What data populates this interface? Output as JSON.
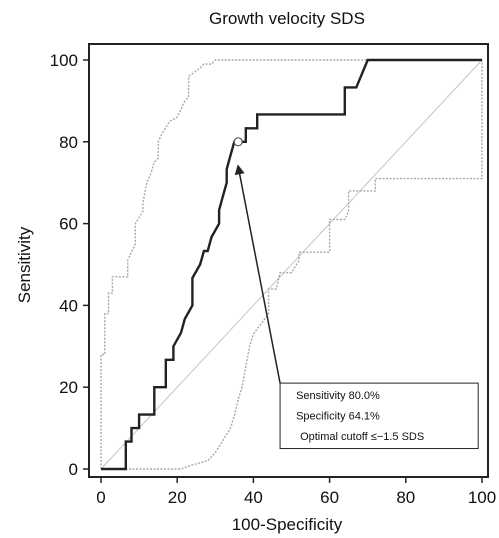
{
  "chart_data": {
    "type": "line",
    "title": "Growth velocity SDS",
    "xlabel": "100-Specificity",
    "ylabel": "Sensitivity",
    "xlim": [
      0,
      100
    ],
    "ylim": [
      0,
      100
    ],
    "x_ticks": [
      "0",
      "20",
      "40",
      "60",
      "80",
      "100"
    ],
    "y_ticks": [
      "0",
      "20",
      "40",
      "60",
      "80",
      "100"
    ],
    "grid": false,
    "series": [
      {
        "role": "roc-curve",
        "color": "#222222",
        "x": [
          0,
          6.5,
          6.5,
          8,
          8,
          10,
          10,
          14,
          14,
          17,
          17,
          19,
          19,
          21,
          22,
          24,
          24,
          26,
          27,
          28,
          29,
          31,
          31,
          32,
          33,
          33,
          34,
          35,
          36,
          36,
          38,
          38,
          40,
          41,
          41,
          44,
          44,
          64,
          64,
          67,
          67,
          70,
          70,
          100
        ],
        "y": [
          0,
          0,
          6.7,
          6.7,
          10,
          10,
          13.3,
          13.3,
          20,
          20,
          26.7,
          26.7,
          30,
          33.3,
          36.7,
          40,
          46.7,
          50,
          53.3,
          53.3,
          56.7,
          60,
          63.3,
          66.7,
          70,
          73.3,
          76.7,
          80,
          80,
          80,
          80,
          83.3,
          83.3,
          83.3,
          86.7,
          86.7,
          86.7,
          86.7,
          93.3,
          93.3,
          93.3,
          100,
          100,
          100
        ]
      },
      {
        "role": "upper-confidence-bound",
        "color": "#a8a8a8",
        "x": [
          0,
          0,
          1,
          1,
          2,
          2,
          3,
          3,
          5,
          7,
          7,
          9,
          9,
          11,
          11,
          12,
          13,
          14,
          15,
          15,
          16,
          18,
          20,
          21,
          22,
          23,
          23,
          26,
          27,
          29,
          30,
          40,
          45,
          100
        ],
        "y": [
          0,
          28,
          28,
          38,
          38,
          43,
          43,
          47,
          47,
          47,
          51,
          55,
          60,
          63,
          65,
          70,
          72,
          75,
          76,
          80,
          82,
          85,
          86,
          88,
          90,
          91,
          96,
          98,
          99,
          99,
          100,
          100,
          100,
          100
        ]
      },
      {
        "role": "lower-confidence-bound",
        "color": "#a8a8a8",
        "x": [
          0,
          21,
          24,
          28,
          30,
          32,
          34,
          35,
          36,
          37,
          38,
          39,
          40,
          44,
          44,
          46,
          47,
          50,
          52,
          52,
          60,
          60,
          64,
          65,
          65,
          72,
          72,
          100,
          100
        ],
        "y": [
          0,
          0,
          1,
          2,
          4,
          7,
          10,
          13,
          17,
          20,
          25,
          30,
          33,
          38,
          44,
          44,
          48,
          48,
          51,
          53,
          53,
          61,
          61,
          63,
          68,
          68,
          71,
          71,
          100
        ]
      },
      {
        "role": "reference-diagonal",
        "color": "#c4c4c4",
        "x": [
          0,
          100
        ],
        "y": [
          0,
          100
        ]
      }
    ],
    "marker": {
      "x": 36,
      "y": 80
    },
    "annotation": {
      "lines": [
        "Sensitivity 80.0%",
        "Specificity 64.1%",
        "Optimal cutoff ≤−1.5 SDS"
      ],
      "arrow_target": {
        "x": 36,
        "y": 74
      },
      "box_data_range": {
        "x0": 47,
        "x1": 99,
        "y0": 5,
        "y1": 21
      }
    }
  }
}
